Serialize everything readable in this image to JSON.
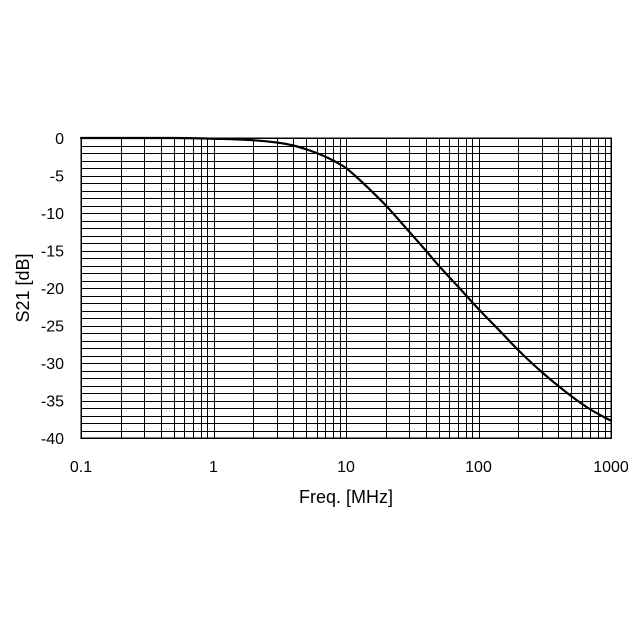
{
  "chart_data": {
    "type": "line",
    "title": "",
    "xlabel": "Freq. [MHz]",
    "ylabel": "S21 [dB]",
    "x_scale": "log",
    "xlim": [
      0.1,
      1000
    ],
    "ylim": [
      -40,
      0
    ],
    "x_ticks": [
      0.1,
      1,
      10,
      100,
      1000
    ],
    "x_tick_labels": [
      "0.1",
      "1",
      "10",
      "100",
      "1000"
    ],
    "y_ticks": [
      0,
      -5,
      -10,
      -15,
      -20,
      -25,
      -30,
      -35,
      -40
    ],
    "y_tick_labels": [
      "0",
      "-5",
      "-10",
      "-15",
      "-20",
      "-25",
      "-30",
      "-35",
      "-40"
    ],
    "y_minor_step": 1,
    "grid": true,
    "legend": "none",
    "line_color": "#000000",
    "series": [
      {
        "x": [
          0.1,
          0.3,
          0.5,
          1,
          2,
          3,
          4,
          5,
          6,
          7,
          8,
          9,
          10,
          12,
          15,
          20,
          30,
          40,
          50,
          70,
          100,
          150,
          200,
          300,
          500,
          700,
          1000
        ],
        "y": [
          0,
          0,
          0,
          -0.1,
          -0.3,
          -0.6,
          -1.0,
          -1.5,
          -2.0,
          -2.5,
          -3.0,
          -3.5,
          -4.0,
          -5.2,
          -6.8,
          -9.0,
          -12.5,
          -15.0,
          -17.0,
          -19.8,
          -22.8,
          -26.0,
          -28.3,
          -31.2,
          -34.4,
          -36.2,
          -37.7
        ]
      }
    ]
  }
}
